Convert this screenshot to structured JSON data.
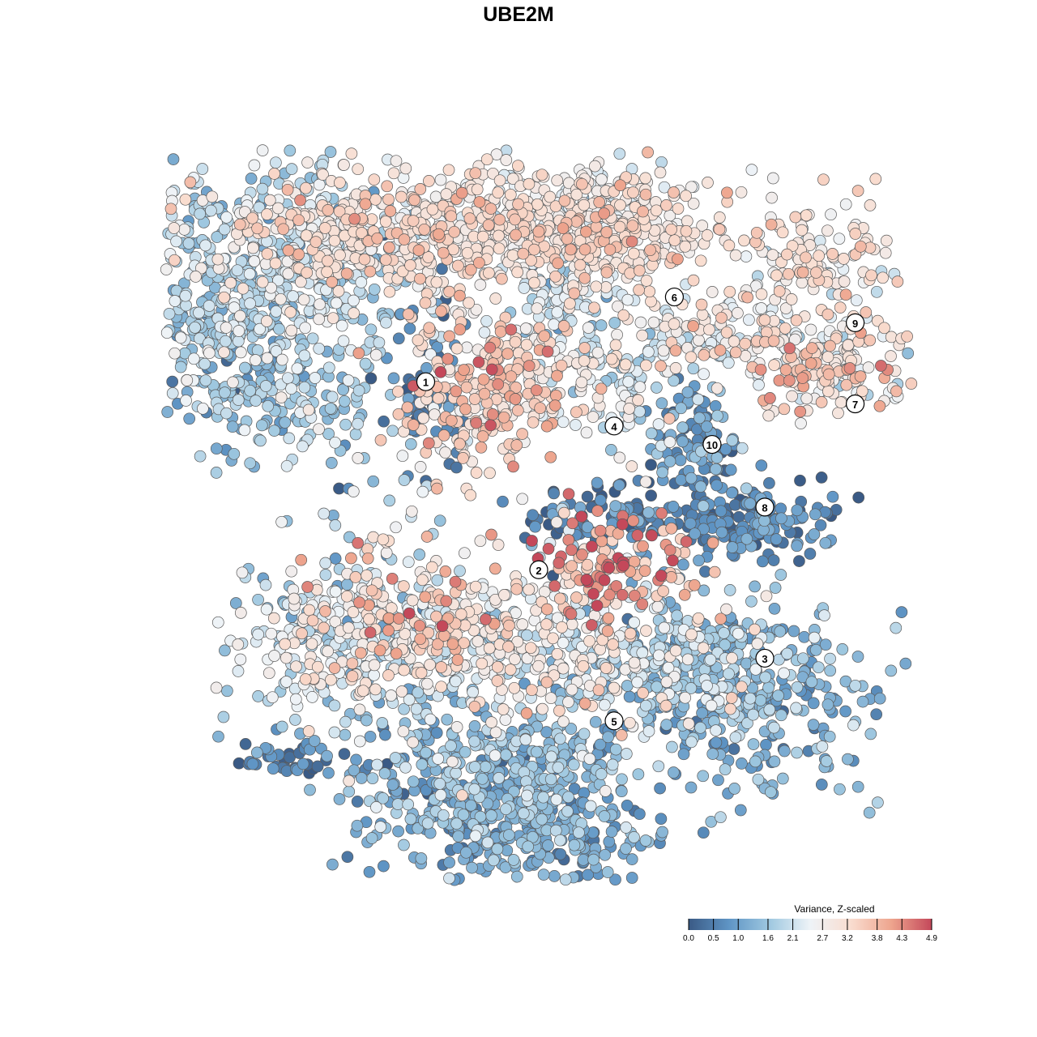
{
  "chart_data": {
    "type": "scatter",
    "title": "UBE2M",
    "xlabel": "",
    "ylabel": "",
    "grid": false,
    "color_variable": "Variance, Z-scaled",
    "color_range": [
      0.0,
      4.9
    ],
    "colorbar": {
      "title": "Variance, Z-scaled",
      "ticks": [
        {
          "value": 0.0,
          "label": "0.0"
        },
        {
          "value": 0.5,
          "label": "0.5"
        },
        {
          "value": 1.0,
          "label": "1.0"
        },
        {
          "value": 1.6,
          "label": "1.6"
        },
        {
          "value": 2.1,
          "label": "2.1"
        },
        {
          "value": 2.7,
          "label": "2.7"
        },
        {
          "value": 3.2,
          "label": "3.2"
        },
        {
          "value": 3.8,
          "label": "3.8"
        },
        {
          "value": 4.3,
          "label": "4.3"
        },
        {
          "value": 4.9,
          "label": "4.9"
        }
      ],
      "colors": [
        "#3a5a85",
        "#5f95c5",
        "#9fc8e0",
        "#eef3f7",
        "#f9ddd0",
        "#eea58e",
        "#c4485a"
      ],
      "placement": "bottom-right"
    },
    "clusters": [
      {
        "label": "1",
        "x": 0.35,
        "y": 0.32,
        "mean": 1.9
      },
      {
        "label": "2",
        "x": 0.5,
        "y": 0.575,
        "mean": 3.3
      },
      {
        "label": "3",
        "x": 0.8,
        "y": 0.695,
        "mean": 1.3
      },
      {
        "label": "4",
        "x": 0.6,
        "y": 0.38,
        "mean": 3.2
      },
      {
        "label": "5",
        "x": 0.6,
        "y": 0.78,
        "mean": 1.3
      },
      {
        "label": "6",
        "x": 0.68,
        "y": 0.205,
        "mean": 2.9
      },
      {
        "label": "7",
        "x": 0.92,
        "y": 0.35,
        "mean": 3.2
      },
      {
        "label": "8",
        "x": 0.8,
        "y": 0.49,
        "mean": 0.7
      },
      {
        "label": "9",
        "x": 0.92,
        "y": 0.24,
        "mean": 2.8
      },
      {
        "label": "10",
        "x": 0.73,
        "y": 0.405,
        "mean": 2.4
      }
    ]
  }
}
